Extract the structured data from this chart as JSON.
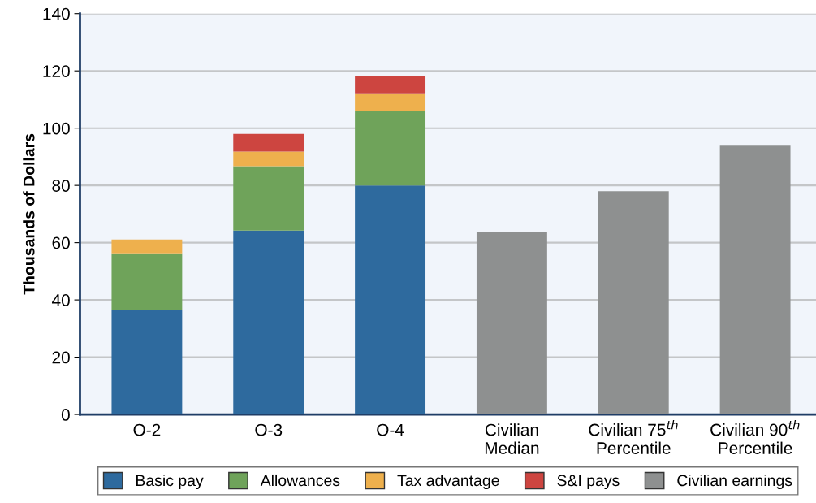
{
  "chart_data": {
    "type": "bar",
    "stacked": true,
    "ylabel": "Thousands of Dollars",
    "categories": [
      "O-2",
      "O-3",
      "O-4",
      "Civilian\nMedian",
      "Civilian 75$^{th}$\nPercentile",
      "Civilian 90$^{th}$\nPercentile"
    ],
    "series": [
      {
        "name": "Basic pay",
        "color": "#2e6a9e",
        "values": [
          36.4,
          64.2,
          80.0,
          null,
          null,
          null
        ]
      },
      {
        "name": "Allowances",
        "color": "#6fa35a",
        "values": [
          19.9,
          22.5,
          26.0,
          null,
          null,
          null
        ]
      },
      {
        "name": "Tax advantage",
        "color": "#eeb04d",
        "values": [
          4.8,
          5.1,
          5.9,
          null,
          null,
          null
        ]
      },
      {
        "name": "S&I pays",
        "color": "#cd4540",
        "values": [
          null,
          6.2,
          6.3,
          null,
          null,
          null
        ]
      },
      {
        "name": "Civilian earnings",
        "color": "#8e9090",
        "values": [
          null,
          null,
          null,
          63.8,
          78.0,
          93.9
        ]
      }
    ],
    "ylim": [
      0,
      140
    ],
    "yticks": [
      0,
      20,
      40,
      60,
      80,
      100,
      120,
      140
    ],
    "grid": "y",
    "legend": "bottom"
  }
}
